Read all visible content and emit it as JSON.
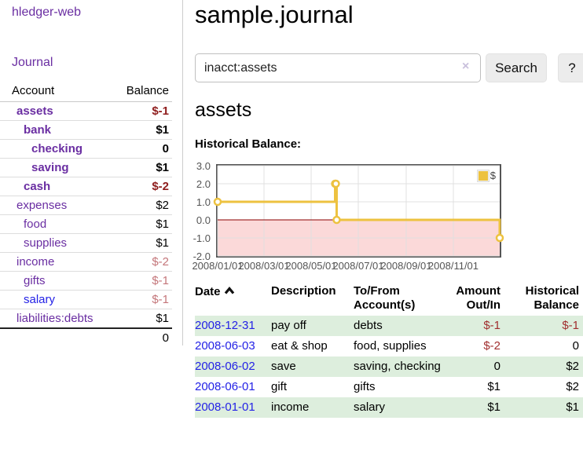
{
  "sidebar": {
    "brand": "hledger-web",
    "nav": {
      "journal": "Journal"
    },
    "accounts": {
      "headers": {
        "account": "Account",
        "balance": "Balance"
      },
      "rows": [
        {
          "name": "assets",
          "balance": "$-1"
        },
        {
          "name": "bank",
          "balance": "$1"
        },
        {
          "name": "checking",
          "balance": "0"
        },
        {
          "name": "saving",
          "balance": "$1"
        },
        {
          "name": "cash",
          "balance": "$-2"
        },
        {
          "name": "expenses",
          "balance": "$2"
        },
        {
          "name": "food",
          "balance": "$1"
        },
        {
          "name": "supplies",
          "balance": "$1"
        },
        {
          "name": "income",
          "balance": "$-2"
        },
        {
          "name": "gifts",
          "balance": "$-1"
        },
        {
          "name": "salary",
          "balance": "$-1"
        },
        {
          "name": "liabilities:debts",
          "balance": "$1"
        }
      ],
      "total": "0"
    }
  },
  "main": {
    "title": "sample.journal",
    "search": {
      "value": "inacct:assets",
      "clear_icon": "×",
      "search_button": "Search",
      "help_button": "?"
    },
    "account_heading": "assets",
    "section_label": "Historical Balance:",
    "register": {
      "headers": {
        "date": "Date",
        "description": "Description",
        "account": "To/From Account(s)",
        "amount": "Amount Out/In",
        "balance": "Historical Balance"
      },
      "rows": [
        {
          "date": "2008-12-31",
          "description": "pay off",
          "account": "debts",
          "amount": "$-1",
          "balance": "$-1"
        },
        {
          "date": "2008-06-03",
          "description": "eat & shop",
          "account": "food, supplies",
          "amount": "$-2",
          "balance": "0"
        },
        {
          "date": "2008-06-02",
          "description": "save",
          "account": "saving, checking",
          "amount": "0",
          "balance": "$2"
        },
        {
          "date": "2008-06-01",
          "description": "gift",
          "account": "gifts",
          "amount": "$1",
          "balance": "$2"
        },
        {
          "date": "2008-01-01",
          "description": "income",
          "account": "salary",
          "amount": "$1",
          "balance": "$1"
        }
      ]
    }
  },
  "colors": {
    "link_purple": "#6a2ea2",
    "link_blue": "#2422e6",
    "negative_strong": "#8f1d1d",
    "negative_soft": "#c4767a",
    "negative_table": "#a12f2f",
    "row_highlight_green": "#ddeedd"
  },
  "chart_data": {
    "type": "line",
    "title": "Historical Balance:",
    "series": [
      {
        "name": "$",
        "color": "#EDC240",
        "step": true,
        "points": [
          {
            "x": "2008-01-01",
            "y": 1
          },
          {
            "x": "2008-06-01",
            "y": 2
          },
          {
            "x": "2008-06-02",
            "y": 2
          },
          {
            "x": "2008-06-03",
            "y": 0
          },
          {
            "x": "2008-12-31",
            "y": -1
          }
        ]
      }
    ],
    "x_ticks": [
      "2008/01/01",
      "2008/03/01",
      "2008/05/01",
      "2008/07/01",
      "2008/09/01",
      "2008/11/01"
    ],
    "y_ticks": [
      "3.0",
      "2.0",
      "1.0",
      "0.0",
      "-1.0",
      "-2.0"
    ],
    "xlim": [
      "2008-01-01",
      "2008-12-31"
    ],
    "ylim": [
      -2,
      3
    ],
    "grid": true,
    "legend_position": "top-right",
    "zero_line_color": "#8b0000",
    "negative_region_color": "#fbd9d9",
    "grid_color": "#e0e0e0"
  }
}
